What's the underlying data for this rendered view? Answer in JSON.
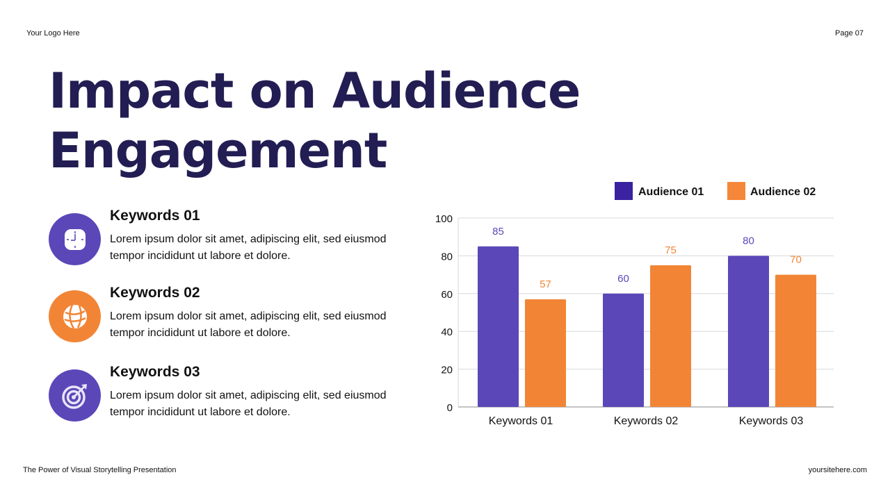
{
  "header": {
    "logo": "Your Logo Here",
    "page": "Page 07"
  },
  "title": "Impact on Audience Engagement",
  "keywords": [
    {
      "title": "Keywords 01",
      "text": "Lorem ipsum dolor sit amet, adipiscing elit, sed eiusmod tempor incididunt ut labore et dolore.",
      "icon": "clock-icon",
      "color": "#5b47b8"
    },
    {
      "title": "Keywords 02",
      "text": "Lorem ipsum dolor sit amet, adipiscing elit, sed eiusmod tempor incididunt ut labore et dolore.",
      "icon": "globe-icon",
      "color": "#f28535"
    },
    {
      "title": "Keywords 03",
      "text": "Lorem ipsum dolor sit amet, adipiscing elit, sed eiusmod tempor incididunt ut labore et dolore.",
      "icon": "target-icon",
      "color": "#5b47b8"
    }
  ],
  "footer": {
    "left": "The Power of Visual Storytelling Presentation",
    "right": "yoursitehere.com"
  },
  "chart_data": {
    "type": "bar",
    "categories": [
      "Keywords 01",
      "Keywords 02",
      "Keywords 03"
    ],
    "series": [
      {
        "name": "Audience 01",
        "values": [
          85,
          60,
          80
        ],
        "color": "#5b47b8",
        "legend_color": "#3a22a0"
      },
      {
        "name": "Audience 02",
        "values": [
          57,
          75,
          70
        ],
        "color": "#f28535",
        "legend_color": "#f5873a"
      }
    ],
    "ylim": [
      0,
      100
    ],
    "yticks": [
      0,
      20,
      40,
      60,
      80,
      100
    ],
    "grid": true,
    "legend": "top-right",
    "data_labels": true
  }
}
